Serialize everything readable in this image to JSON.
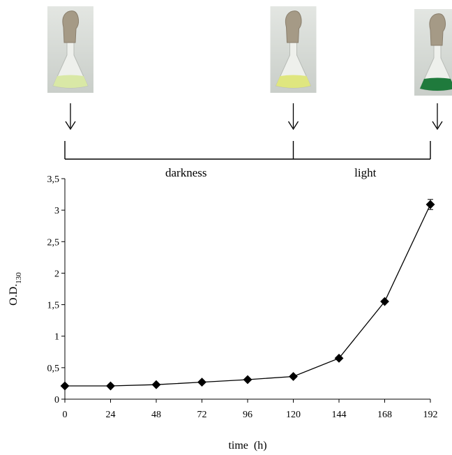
{
  "chart_data": {
    "type": "line",
    "xlabel": "time  (h)",
    "ylabel": {
      "main": "O.D.",
      "sub": "130"
    },
    "xlim": [
      0,
      192
    ],
    "ylim": [
      0,
      3.5
    ],
    "x_ticks": [
      {
        "value": 0,
        "label": "0"
      },
      {
        "value": 24,
        "label": "24"
      },
      {
        "value": 48,
        "label": "48"
      },
      {
        "value": 72,
        "label": "72"
      },
      {
        "value": 96,
        "label": "96"
      },
      {
        "value": 120,
        "label": "120"
      },
      {
        "value": 144,
        "label": "144"
      },
      {
        "value": 168,
        "label": "168"
      },
      {
        "value": 192,
        "label": "192"
      }
    ],
    "y_ticks": [
      {
        "value": 0,
        "label": "0"
      },
      {
        "value": 0.5,
        "label": "0,5"
      },
      {
        "value": 1,
        "label": "1"
      },
      {
        "value": 1.5,
        "label": "1,5"
      },
      {
        "value": 2,
        "label": "2"
      },
      {
        "value": 2.5,
        "label": "2,5"
      },
      {
        "value": 3,
        "label": "3"
      },
      {
        "value": 3.5,
        "label": "3,5"
      }
    ],
    "series": [
      {
        "marker": "diamond",
        "x": [
          0,
          24,
          48,
          72,
          96,
          120,
          144,
          168,
          192
        ],
        "y": [
          0.21,
          0.21,
          0.23,
          0.27,
          0.31,
          0.36,
          0.65,
          1.55,
          3.09
        ],
        "error": [
          0,
          0,
          0,
          0,
          0,
          0,
          0,
          0,
          0.08
        ]
      }
    ],
    "grid": false,
    "legend": "none",
    "phases": [
      {
        "label": "darkness",
        "start": 0,
        "end": 120
      },
      {
        "label": "light",
        "start": 120,
        "end": 192
      }
    ],
    "flask_photos": [
      {
        "at": 0,
        "color": "#d9e8a6"
      },
      {
        "at": 120,
        "color": "#dfe67f"
      },
      {
        "at": 192,
        "color": "#1f7a3c"
      }
    ]
  }
}
